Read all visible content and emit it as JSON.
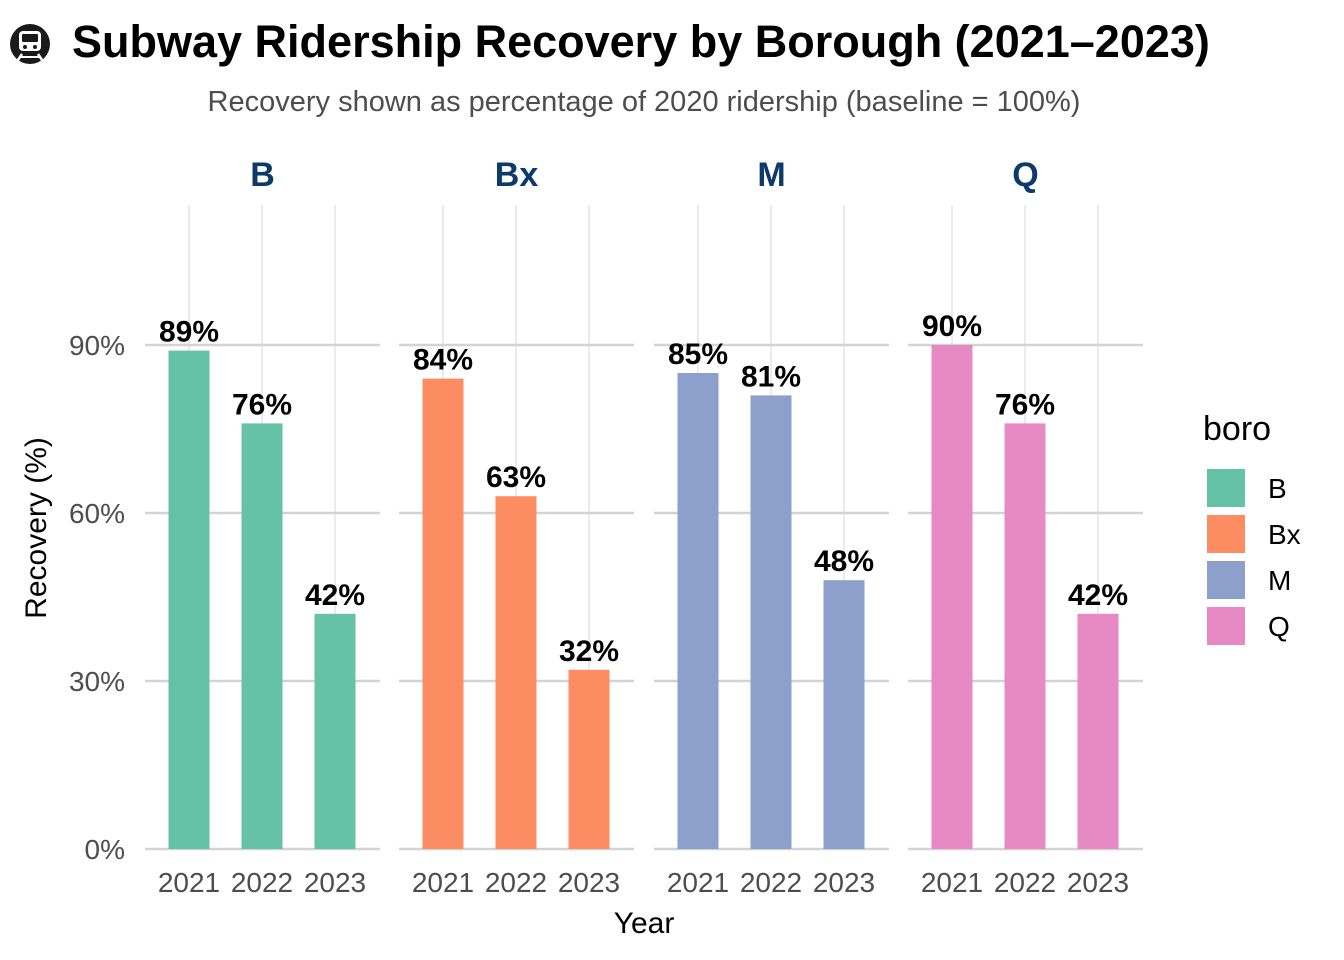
{
  "chart_data": {
    "type": "bar",
    "title": "Subway Ridership Recovery by Borough (2021–2023)",
    "title_icon": "metro-train-icon",
    "subtitle": "Recovery shown as percentage of 2020 ridership (baseline = 100%)",
    "xlabel": "Year",
    "ylabel": "Recovery (%)",
    "ylim": [
      0,
      115
    ],
    "yticks": [
      0,
      30,
      60,
      90
    ],
    "ytick_labels": [
      "0%",
      "30%",
      "60%",
      "90%"
    ],
    "grid": true,
    "legend": {
      "title": "boro",
      "position": "right"
    },
    "categories": [
      "2021",
      "2022",
      "2023"
    ],
    "facets": [
      {
        "panel": "B",
        "color": "#66c2a5",
        "values": [
          89,
          76,
          42
        ],
        "labels": [
          "89%",
          "76%",
          "42%"
        ]
      },
      {
        "panel": "Bx",
        "color": "#fc8d62",
        "values": [
          84,
          63,
          32
        ],
        "labels": [
          "84%",
          "63%",
          "32%"
        ]
      },
      {
        "panel": "M",
        "color": "#8da0cb",
        "values": [
          85,
          81,
          48
        ],
        "labels": [
          "85%",
          "81%",
          "48%"
        ]
      },
      {
        "panel": "Q",
        "color": "#e78ac3",
        "values": [
          90,
          76,
          42
        ],
        "labels": [
          "90%",
          "76%",
          "42%"
        ]
      }
    ]
  }
}
